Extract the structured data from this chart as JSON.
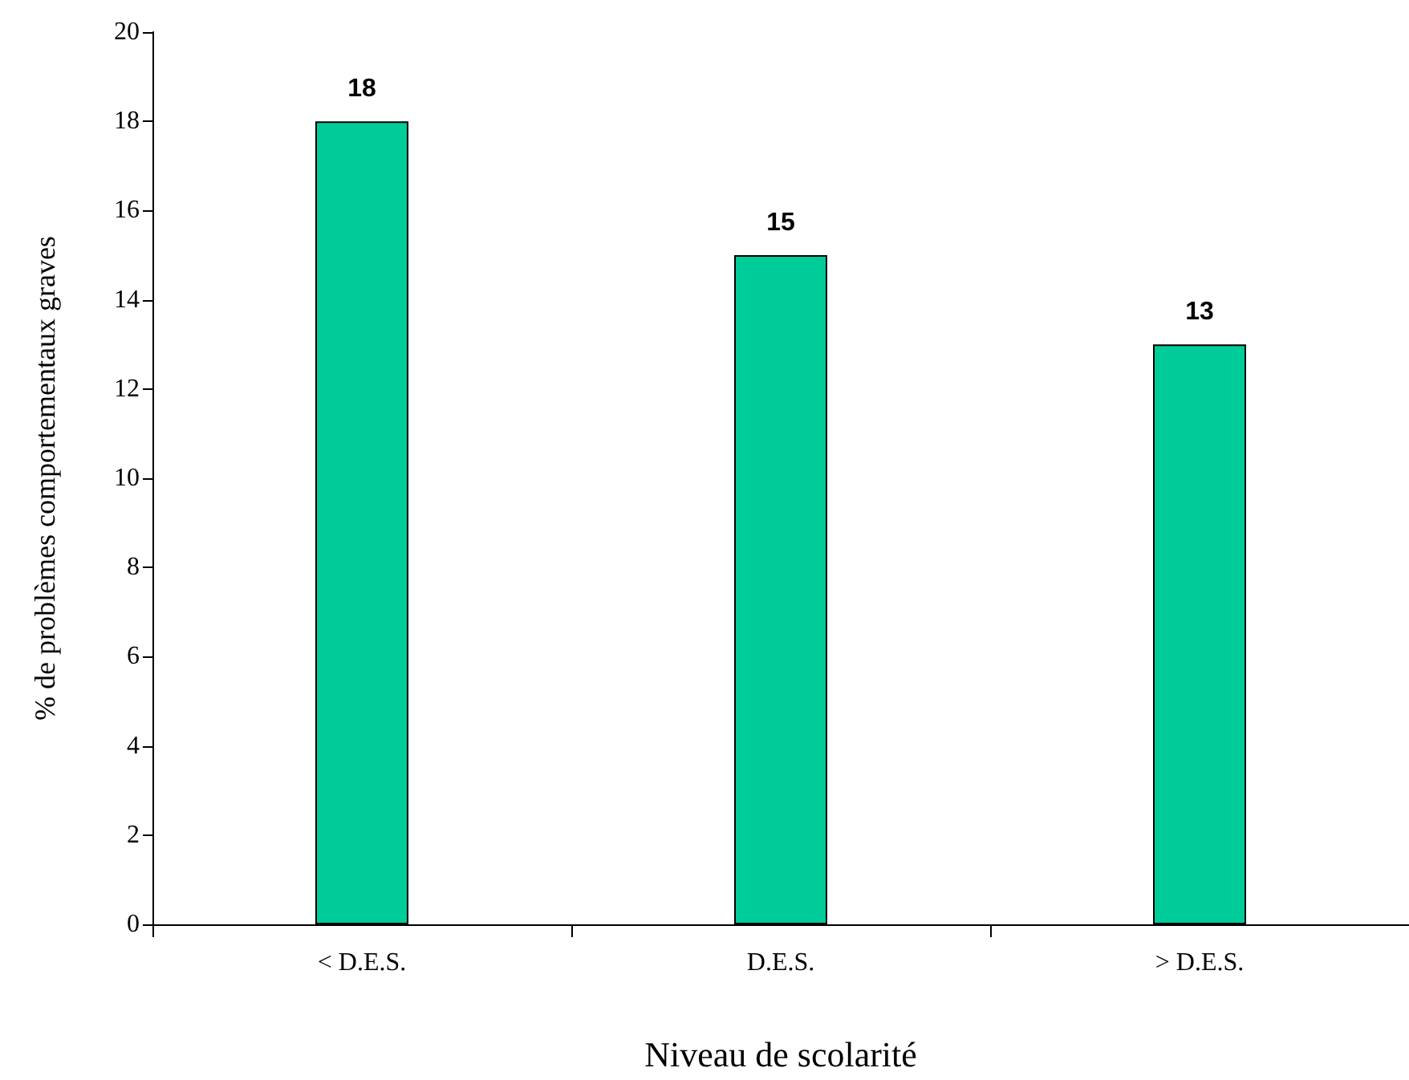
{
  "chart_data": {
    "type": "bar",
    "xlabel": "Niveau de scolarité",
    "ylabel": "% de problèmes comportementaux graves",
    "categories": [
      "< D.E.S.",
      "D.E.S.",
      "> D.E.S."
    ],
    "values": [
      18,
      15,
      13
    ],
    "color": "#00cc99",
    "ylim": [
      0,
      20
    ],
    "yticks": [
      0,
      2,
      4,
      6,
      8,
      10,
      12,
      14,
      16,
      18,
      20
    ],
    "grid": false,
    "data_labels": true
  }
}
